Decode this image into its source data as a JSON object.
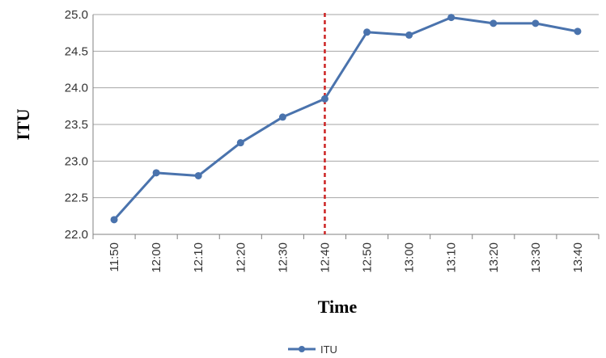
{
  "chart_data": {
    "type": "line",
    "categories": [
      "11:50",
      "12:00",
      "12:10",
      "12:20",
      "12:30",
      "12:40",
      "12:50",
      "13:00",
      "13:10",
      "13:20",
      "13:30",
      "13:40"
    ],
    "series": [
      {
        "name": "ITU",
        "values": [
          22.2,
          22.84,
          22.8,
          23.25,
          23.6,
          23.85,
          24.76,
          24.72,
          24.96,
          24.88,
          24.88,
          24.77
        ]
      }
    ],
    "xlabel": "Time",
    "ylabel": "ITU",
    "ylim": [
      22.0,
      25.0
    ],
    "yticks": [
      "22.0",
      "22.5",
      "23.0",
      "23.5",
      "24.0",
      "24.5",
      "25.0"
    ],
    "grid": "horizontal",
    "legend": "bottom-center",
    "marker_line": {
      "category": "12:40",
      "style": "dashed",
      "color": "#cc2222"
    },
    "colors": {
      "series": "#4a73ad",
      "grid": "#a6a6a6",
      "axis": "#808080"
    }
  }
}
